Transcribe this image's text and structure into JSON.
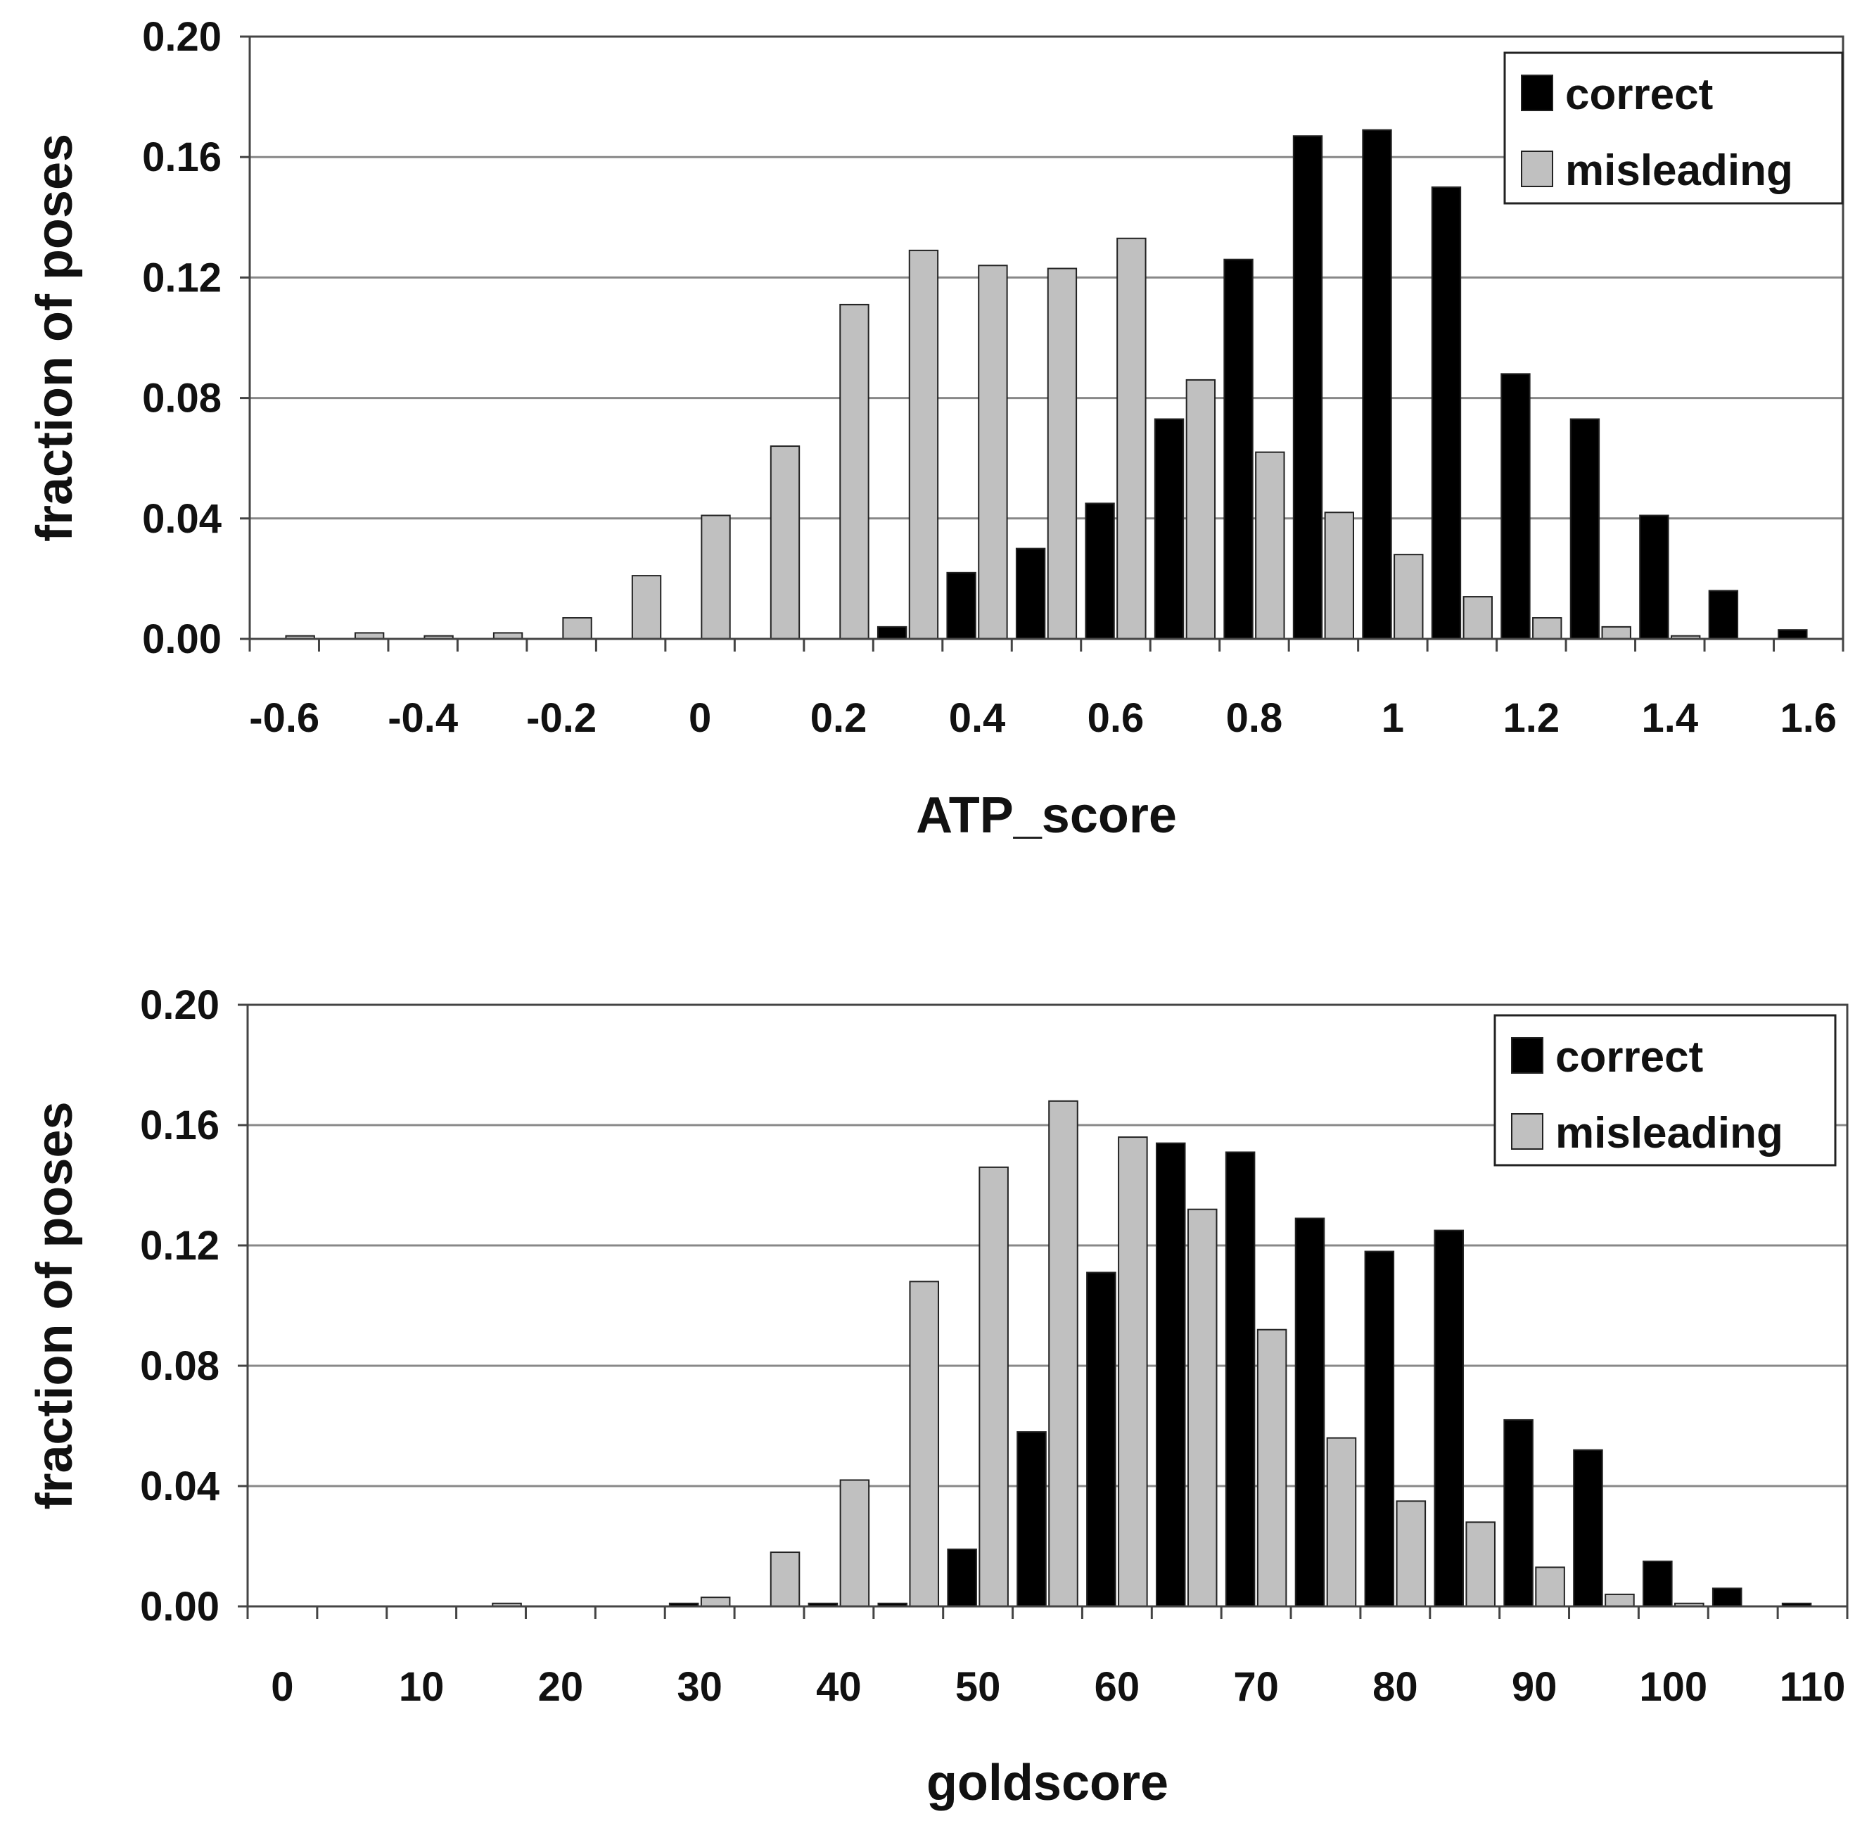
{
  "chart_data": [
    {
      "type": "bar",
      "xlabel": "ATP_score",
      "ylabel": "fraction of poses",
      "ylim": [
        0,
        0.2
      ],
      "yticks": [
        "0.00",
        "0.04",
        "0.08",
        "0.12",
        "0.16",
        "0.20"
      ],
      "xtick_labels": [
        "-0.6",
        "-0.4",
        "-0.2",
        "0",
        "0.2",
        "0.4",
        "0.6",
        "0.8",
        "1",
        "1.2",
        "1.4",
        "1.6"
      ],
      "grid": true,
      "legend_position": "top-right",
      "categories": [
        "-0.6",
        "-0.5",
        "-0.4",
        "-0.3",
        "-0.2",
        "-0.1",
        "0",
        "0.1",
        "0.2",
        "0.3",
        "0.4",
        "0.5",
        "0.6",
        "0.7",
        "0.8",
        "0.9",
        "1",
        "1.1",
        "1.2",
        "1.3",
        "1.4",
        "1.5",
        "1.6"
      ],
      "series": [
        {
          "name": "correct",
          "color": "#000000",
          "values": [
            0,
            0,
            0,
            0,
            0,
            0,
            0,
            0,
            0,
            0.004,
            0.022,
            0.03,
            0.045,
            0.073,
            0.126,
            0.167,
            0.169,
            0.15,
            0.088,
            0.073,
            0.041,
            0.016,
            0.003
          ]
        },
        {
          "name": "misleading",
          "color": "#c0c0c0",
          "values": [
            0.001,
            0.002,
            0.001,
            0.002,
            0.007,
            0.021,
            0.041,
            0.064,
            0.111,
            0.129,
            0.124,
            0.123,
            0.133,
            0.086,
            0.062,
            0.042,
            0.028,
            0.014,
            0.007,
            0.004,
            0.001,
            0,
            0
          ]
        }
      ]
    },
    {
      "type": "bar",
      "xlabel": "goldscore",
      "ylabel": "fraction of poses",
      "ylim": [
        0,
        0.2
      ],
      "yticks": [
        "0.00",
        "0.04",
        "0.08",
        "0.12",
        "0.16",
        "0.20"
      ],
      "xtick_labels": [
        "0",
        "10",
        "20",
        "30",
        "40",
        "50",
        "60",
        "70",
        "80",
        "90",
        "100",
        "110"
      ],
      "grid": true,
      "legend_position": "top-right",
      "categories": [
        "0",
        "5",
        "10",
        "15",
        "20",
        "25",
        "30",
        "35",
        "40",
        "45",
        "50",
        "55",
        "60",
        "65",
        "70",
        "75",
        "80",
        "85",
        "90",
        "95",
        "100",
        "105",
        "110"
      ],
      "series": [
        {
          "name": "correct",
          "color": "#000000",
          "values": [
            0,
            0,
            0,
            0,
            0,
            0,
            0.001,
            0,
            0.001,
            0.001,
            0.019,
            0.058,
            0.111,
            0.154,
            0.151,
            0.129,
            0.118,
            0.125,
            0.062,
            0.052,
            0.015,
            0.006,
            0.001
          ]
        },
        {
          "name": "misleading",
          "color": "#c0c0c0",
          "values": [
            0,
            0,
            0,
            0.001,
            0,
            0,
            0.003,
            0.018,
            0.042,
            0.108,
            0.146,
            0.168,
            0.156,
            0.132,
            0.092,
            0.056,
            0.035,
            0.028,
            0.013,
            0.004,
            0.001,
            0,
            0
          ]
        }
      ]
    }
  ]
}
